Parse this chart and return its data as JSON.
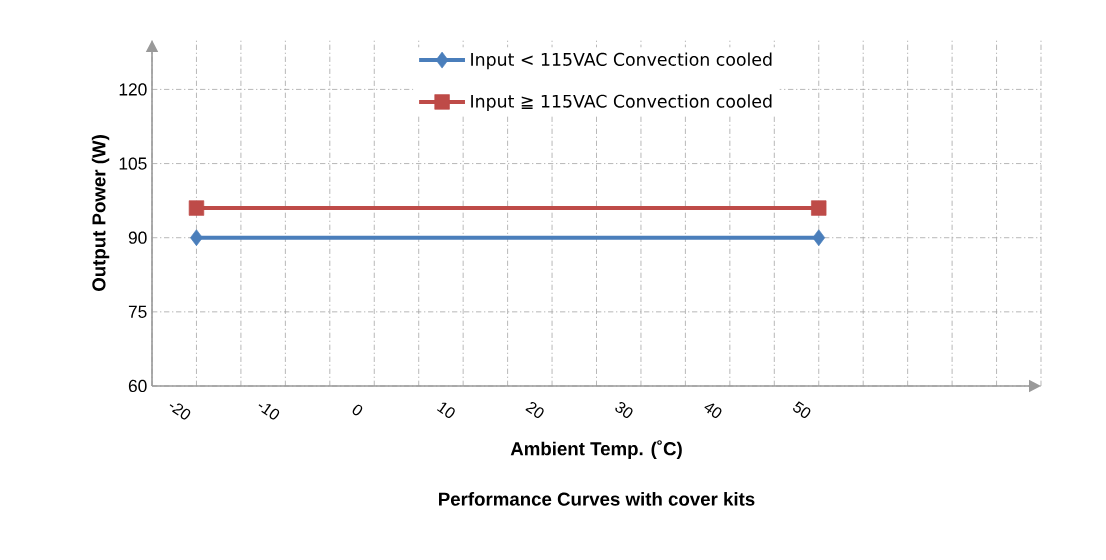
{
  "chart_data": {
    "type": "line",
    "xlabel": "Ambient Temp. (˚C)",
    "ylabel": "Output Power (W)",
    "title": "Performance Curves with cover kits",
    "xlim": [
      -25,
      75
    ],
    "xticks": [
      {
        "value": -25,
        "label": null
      },
      -20,
      {
        "value": -15,
        "label": null
      },
      -10,
      {
        "value": -5,
        "label": null
      },
      0,
      {
        "value": 5,
        "label": null
      },
      10,
      {
        "value": 15,
        "label": null
      },
      20,
      {
        "value": 25,
        "label": null
      },
      30,
      {
        "value": 35,
        "label": null
      },
      40,
      {
        "value": 45,
        "label": null
      },
      50,
      {
        "value": 55,
        "label": null
      },
      {
        "value": 60,
        "label": null
      },
      {
        "value": 65,
        "label": null
      },
      {
        "value": 70,
        "label": null
      },
      {
        "value": 75,
        "label": null
      }
    ],
    "x": [
      -20,
      50
    ],
    "ylim": [
      60,
      130
    ],
    "yticks": [
      60,
      75,
      90,
      105,
      120
    ],
    "grid": true,
    "legend": "top",
    "line_style": "solid",
    "series": [
      {
        "name": "Input < 115VAC Convection cooled",
        "color": "#4a7ebb",
        "marker": "diamond",
        "values": [
          90,
          90
        ]
      },
      {
        "name": "Input ≧ 115VAC Convection cooled",
        "color": "#be4b48",
        "marker": "square",
        "values": [
          96,
          96
        ]
      }
    ]
  }
}
